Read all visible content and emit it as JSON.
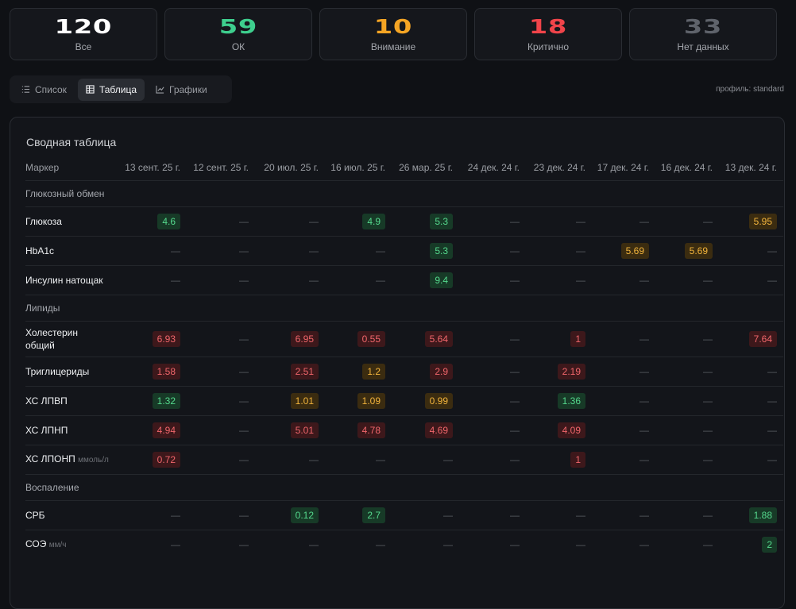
{
  "stats": [
    {
      "value": 120,
      "label": "Все",
      "color": "#ffffff"
    },
    {
      "value": 59,
      "label": "ОК",
      "color": "#3ecf8e"
    },
    {
      "value": 10,
      "label": "Внимание",
      "color": "#f5a524"
    },
    {
      "value": 18,
      "label": "Критично",
      "color": "#f0444a"
    },
    {
      "value": 33,
      "label": "Нет данных",
      "color": "#5f636b"
    }
  ],
  "tabs": [
    "Список",
    "Таблица",
    "Графики"
  ],
  "active_tab": 1,
  "profile": "профиль: standard",
  "table": {
    "title": "Сводная таблица",
    "header": [
      "Маркер",
      "13 сент. 25 г.",
      "12 сент. 25 г.",
      "20 июл. 25 г.",
      "16 июл. 25 г.",
      "26 мар. 25 г.",
      "24 дек. 24 г.",
      "23 дек. 24 г.",
      "17 дек. 24 г.",
      "16 дек. 24 г.",
      "13 дек. 24 г."
    ],
    "groups": [
      {
        "name": "Глюкозный обмен",
        "rows": [
          {
            "marker": "Глюкоза",
            "cells": [
              {
                "text": "4.6",
                "status": "ok"
              },
              {
                "text": "—"
              },
              {
                "text": "—"
              },
              {
                "text": "4.9",
                "status": "ok"
              },
              {
                "text": "5.3",
                "status": "ok"
              },
              {
                "text": "—"
              },
              {
                "text": "—"
              },
              {
                "text": "—"
              },
              {
                "text": "—"
              },
              {
                "text": "5.95",
                "status": "warn"
              }
            ]
          },
          {
            "marker": "HbA1c",
            "cells": [
              {
                "text": "—"
              },
              {
                "text": "—"
              },
              {
                "text": "—"
              },
              {
                "text": "—"
              },
              {
                "text": "5.3",
                "status": "ok"
              },
              {
                "text": "—"
              },
              {
                "text": "—"
              },
              {
                "text": "5.69",
                "status": "warn"
              },
              {
                "text": "5.69",
                "status": "warn"
              },
              {
                "text": "—"
              }
            ]
          },
          {
            "marker": "Инсулин натощак",
            "cells": [
              {
                "text": "—"
              },
              {
                "text": "—"
              },
              {
                "text": "—"
              },
              {
                "text": "—"
              },
              {
                "text": "9.4",
                "status": "ok"
              },
              {
                "text": "—"
              },
              {
                "text": "—"
              },
              {
                "text": "—"
              },
              {
                "text": "—"
              },
              {
                "text": "—"
              }
            ]
          }
        ]
      },
      {
        "name": "Липиды",
        "rows": [
          {
            "marker": "Холестерин общий",
            "cells": [
              {
                "text": "6.93",
                "status": "crit"
              },
              {
                "text": "—"
              },
              {
                "text": "6.95",
                "status": "crit"
              },
              {
                "text": "0.55",
                "status": "crit"
              },
              {
                "text": "5.64",
                "status": "crit"
              },
              {
                "text": "—"
              },
              {
                "text": "1",
                "status": "crit"
              },
              {
                "text": "—"
              },
              {
                "text": "—"
              },
              {
                "text": "7.64",
                "status": "crit"
              }
            ]
          },
          {
            "marker": "Триглицериды",
            "cells": [
              {
                "text": "1.58",
                "status": "crit"
              },
              {
                "text": "—"
              },
              {
                "text": "2.51",
                "status": "crit"
              },
              {
                "text": "1.2",
                "status": "warn"
              },
              {
                "text": "2.9",
                "status": "crit"
              },
              {
                "text": "—"
              },
              {
                "text": "2.19",
                "status": "crit"
              },
              {
                "text": "—"
              },
              {
                "text": "—"
              },
              {
                "text": "—"
              }
            ]
          },
          {
            "marker": "ХС ЛПВП",
            "cells": [
              {
                "text": "1.32",
                "status": "ok"
              },
              {
                "text": "—"
              },
              {
                "text": "1.01",
                "status": "warn"
              },
              {
                "text": "1.09",
                "status": "warn"
              },
              {
                "text": "0.99",
                "status": "warn"
              },
              {
                "text": "—"
              },
              {
                "text": "1.36",
                "status": "ok"
              },
              {
                "text": "—"
              },
              {
                "text": "—"
              },
              {
                "text": "—"
              }
            ]
          },
          {
            "marker": "ХС ЛПНП",
            "cells": [
              {
                "text": "4.94",
                "status": "crit"
              },
              {
                "text": "—"
              },
              {
                "text": "5.01",
                "status": "crit"
              },
              {
                "text": "4.78",
                "status": "crit"
              },
              {
                "text": "4.69",
                "status": "crit"
              },
              {
                "text": "—"
              },
              {
                "text": "4.09",
                "status": "crit"
              },
              {
                "text": "—"
              },
              {
                "text": "—"
              },
              {
                "text": "—"
              }
            ]
          },
          {
            "marker": "ХС ЛПОНП",
            "unit": "ммоль/л",
            "cells": [
              {
                "text": "0.72",
                "status": "crit"
              },
              {
                "text": "—"
              },
              {
                "text": "—"
              },
              {
                "text": "—"
              },
              {
                "text": "—"
              },
              {
                "text": "—"
              },
              {
                "text": "1",
                "status": "crit"
              },
              {
                "text": "—"
              },
              {
                "text": "—"
              },
              {
                "text": "—"
              }
            ]
          }
        ]
      },
      {
        "name": "Воспаление",
        "rows": [
          {
            "marker": "СРБ",
            "cells": [
              {
                "text": "—"
              },
              {
                "text": "—"
              },
              {
                "text": "0.12",
                "status": "ok"
              },
              {
                "text": "2.7",
                "status": "ok"
              },
              {
                "text": "—"
              },
              {
                "text": "—"
              },
              {
                "text": "—"
              },
              {
                "text": "—"
              },
              {
                "text": "—"
              },
              {
                "text": "1.88",
                "status": "ok"
              }
            ]
          },
          {
            "marker": "СОЭ",
            "unit": "мм/ч",
            "cells": [
              {
                "text": "—"
              },
              {
                "text": "—"
              },
              {
                "text": "—"
              },
              {
                "text": "—"
              },
              {
                "text": "—"
              },
              {
                "text": "—"
              },
              {
                "text": "—"
              },
              {
                "text": "—"
              },
              {
                "text": "—"
              },
              {
                "text": "2",
                "status": "ok"
              }
            ]
          }
        ]
      }
    ]
  }
}
